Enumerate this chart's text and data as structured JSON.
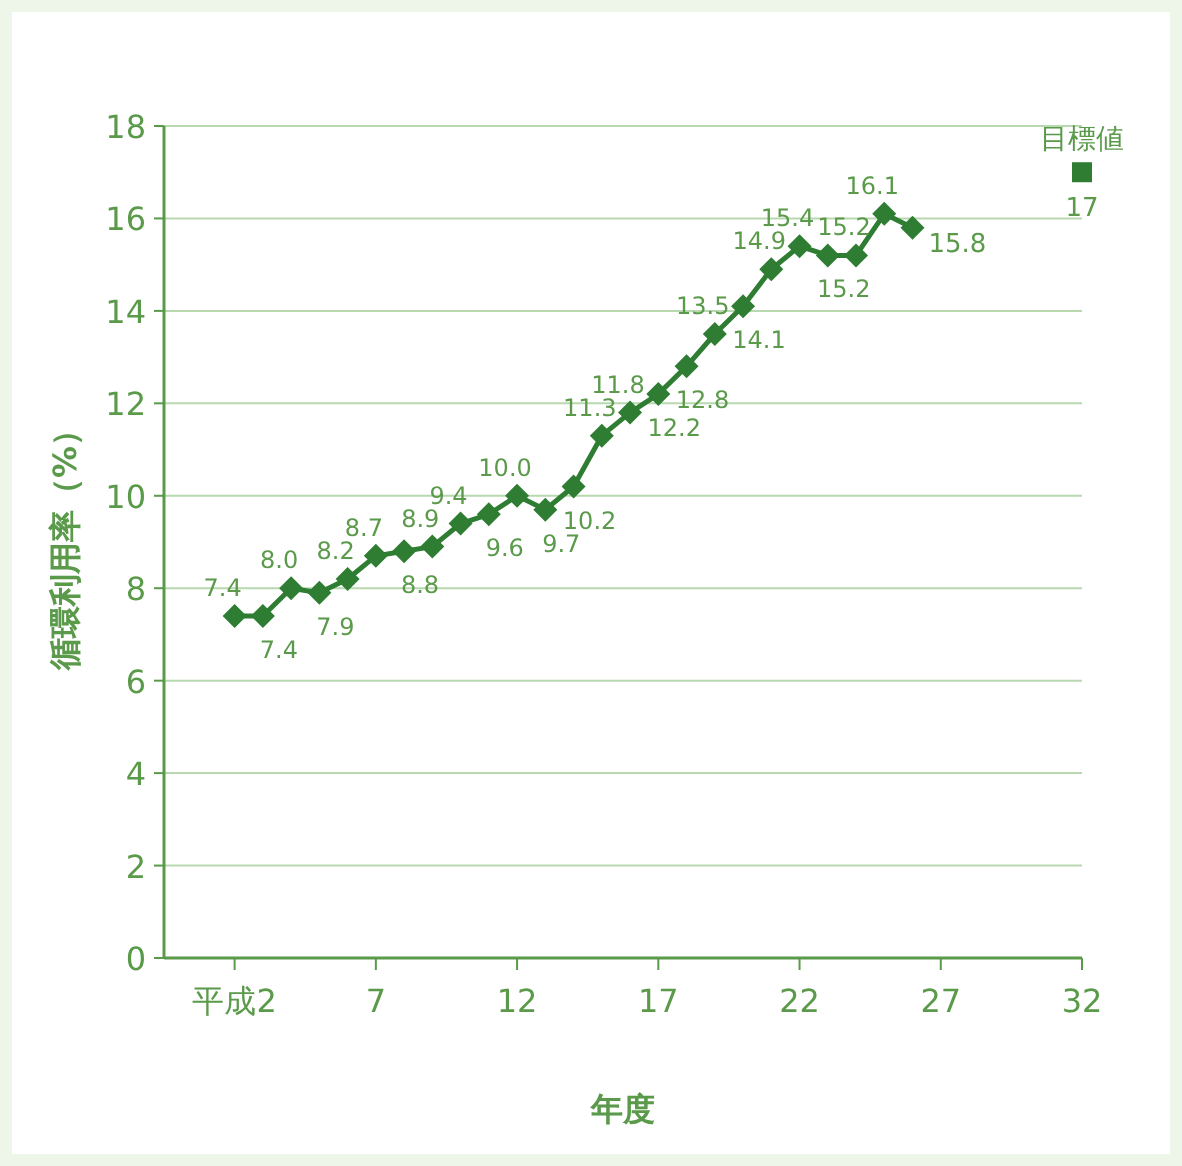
{
  "chart_data": {
    "type": "line",
    "xlabel": "年度",
    "ylabel": "循環利用率（%）",
    "xlim": [
      -0.5,
      32
    ],
    "ylim": [
      0,
      18
    ],
    "xticks": [
      {
        "value": 2,
        "label": "平成2"
      },
      7,
      12,
      17,
      22,
      27,
      32
    ],
    "yticks": [
      0,
      2,
      4,
      6,
      8,
      10,
      12,
      14,
      16,
      18
    ],
    "grid": "y",
    "marker": "diamond",
    "series": [
      {
        "color": "#2e7d32",
        "x": [
          2,
          3,
          4,
          5,
          6,
          7,
          8,
          9,
          10,
          11,
          12,
          13,
          14,
          15,
          16,
          17,
          18,
          19,
          20,
          21,
          22,
          23,
          24,
          25,
          26
        ],
        "values": [
          7.4,
          7.4,
          8.0,
          7.9,
          8.2,
          8.7,
          8.8,
          8.9,
          9.4,
          9.6,
          10.0,
          9.7,
          10.2,
          11.3,
          11.8,
          12.2,
          12.8,
          13.5,
          14.1,
          14.9,
          15.4,
          15.2,
          15.2,
          16.1,
          15.8
        ],
        "value_labels": [
          "7.4",
          "7.4",
          "8.0",
          "7.9",
          "8.2",
          "8.7",
          "8.8",
          "8.9",
          "9.4",
          "9.6",
          "10.0",
          "9.7",
          "10.2",
          "11.3",
          "11.8",
          "12.2",
          "12.8",
          "13.5",
          "14.1",
          "14.9",
          "15.4",
          "15.2",
          "15.2",
          "16.1",
          "15.8"
        ]
      },
      {
        "type": "scatter",
        "name": "目標値",
        "marker": "square",
        "color": "#2e7d32",
        "x": [
          32
        ],
        "values": [
          17
        ],
        "value_labels": [
          "17"
        ]
      }
    ]
  }
}
